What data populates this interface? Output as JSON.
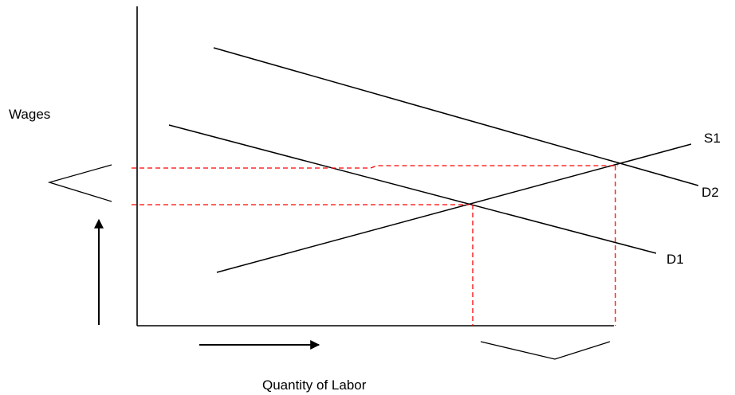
{
  "diagram": {
    "y_axis_label": "Wages",
    "x_axis_label": "Quantity of Labor",
    "curves": {
      "supply": "S1",
      "demand_initial": "D1",
      "demand_shifted": "D2"
    },
    "colors": {
      "axes": "#000000",
      "curves": "#000000",
      "guides": "#ff0000",
      "text": "#000000"
    }
  }
}
